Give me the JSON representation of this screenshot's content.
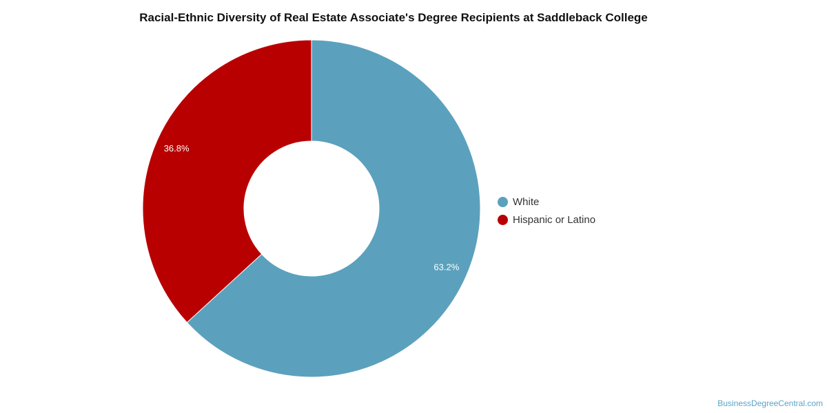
{
  "chart_data": {
    "type": "pie",
    "variant": "donut",
    "title": "Racial-Ethnic Diversity of Real Estate Associate's Degree Recipients at Saddleback College",
    "categories": [
      "White",
      "Hispanic or Latino"
    ],
    "values": [
      63.2,
      36.8
    ],
    "value_labels": [
      "63.2%",
      "36.8%"
    ],
    "colors": [
      "#5ba1bd",
      "#b90000"
    ],
    "legend_position": "right"
  },
  "credit": "BusinessDegreeCentral.com"
}
